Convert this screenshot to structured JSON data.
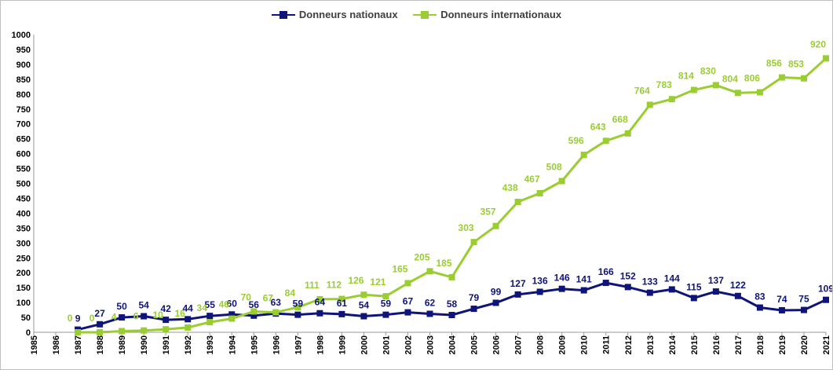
{
  "chart_data": {
    "type": "line",
    "title": "",
    "xlabel": "",
    "ylabel": "",
    "x": [
      "1985",
      "1986",
      "1987",
      "1988",
      "1989",
      "1990",
      "1991",
      "1992",
      "1993",
      "1994",
      "1995",
      "1996",
      "1997",
      "1998",
      "1999",
      "2000",
      "2001",
      "2002",
      "2003",
      "2004",
      "2005",
      "2006",
      "2007",
      "2008",
      "2009",
      "2010",
      "2011",
      "2012",
      "2013",
      "2014",
      "2015",
      "2016",
      "2017",
      "2018",
      "2019",
      "2020",
      "2021"
    ],
    "ylim": [
      0,
      1000
    ],
    "yticks": [
      "0",
      "50",
      "100",
      "150",
      "200",
      "250",
      "300",
      "350",
      "400",
      "450",
      "500",
      "550",
      "600",
      "650",
      "700",
      "750",
      "800",
      "850",
      "900",
      "950",
      "1000"
    ],
    "grid": false,
    "legend": "top-center",
    "series": [
      {
        "name": "Donneurs nationaux",
        "color": "#0f1478",
        "marker": "square",
        "values": [
          null,
          null,
          9,
          27,
          50,
          54,
          42,
          44,
          55,
          60,
          56,
          63,
          59,
          64,
          61,
          54,
          59,
          67,
          62,
          58,
          79,
          99,
          127,
          136,
          146,
          141,
          166,
          152,
          133,
          144,
          115,
          137,
          122,
          83,
          74,
          75,
          109
        ]
      },
      {
        "name": "Donneurs internationaux",
        "color": "#9acd32",
        "marker": "square",
        "values": [
          null,
          null,
          0,
          0,
          4,
          6,
          10,
          16,
          34,
          46,
          70,
          67,
          84,
          111,
          112,
          126,
          121,
          165,
          205,
          185,
          303,
          357,
          438,
          467,
          508,
          596,
          643,
          668,
          764,
          783,
          814,
          830,
          804,
          806,
          856,
          853,
          920
        ]
      }
    ]
  }
}
